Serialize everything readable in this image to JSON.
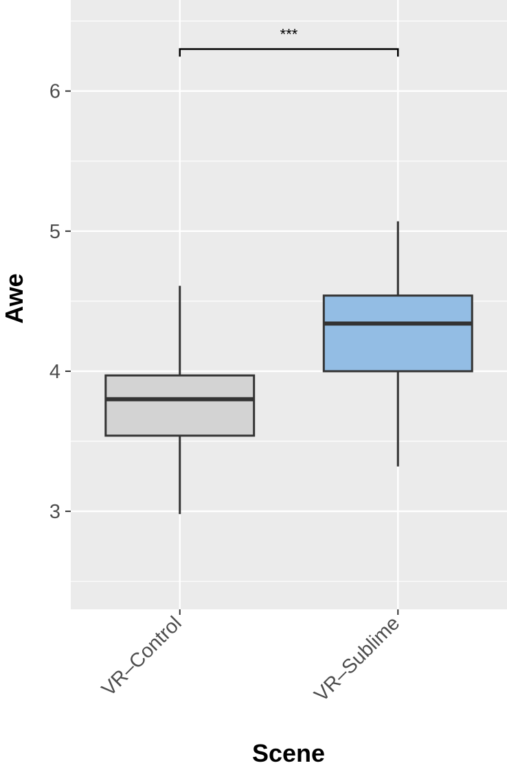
{
  "chart_data": {
    "type": "boxplot",
    "xlabel": "Scene",
    "ylabel": "Awe",
    "ylim": [
      2.3,
      6.65
    ],
    "yticks": [
      3,
      4,
      5,
      6
    ],
    "ytick_labels": [
      "3",
      "4",
      "5",
      "6"
    ],
    "grid": true,
    "categories": [
      "VR–Control",
      "VR–Sublime"
    ],
    "boxes": [
      {
        "category": "VR–Control",
        "whisker_low": 2.98,
        "q1": 3.54,
        "median": 3.8,
        "q3": 3.97,
        "whisker_high": 4.61,
        "fill": "#d3d3d3"
      },
      {
        "category": "VR–Sublime",
        "whisker_low": 3.32,
        "q1": 4.0,
        "median": 4.34,
        "q3": 4.54,
        "whisker_high": 5.07,
        "fill": "#93bde4"
      }
    ],
    "significance": {
      "from": 0,
      "to": 1,
      "y": 6.3,
      "label": "***"
    }
  },
  "colors": {
    "panel": "#ebebeb",
    "grid": "#ffffff",
    "box_stroke": "#333333",
    "axis_text": "#4d4d4d"
  }
}
